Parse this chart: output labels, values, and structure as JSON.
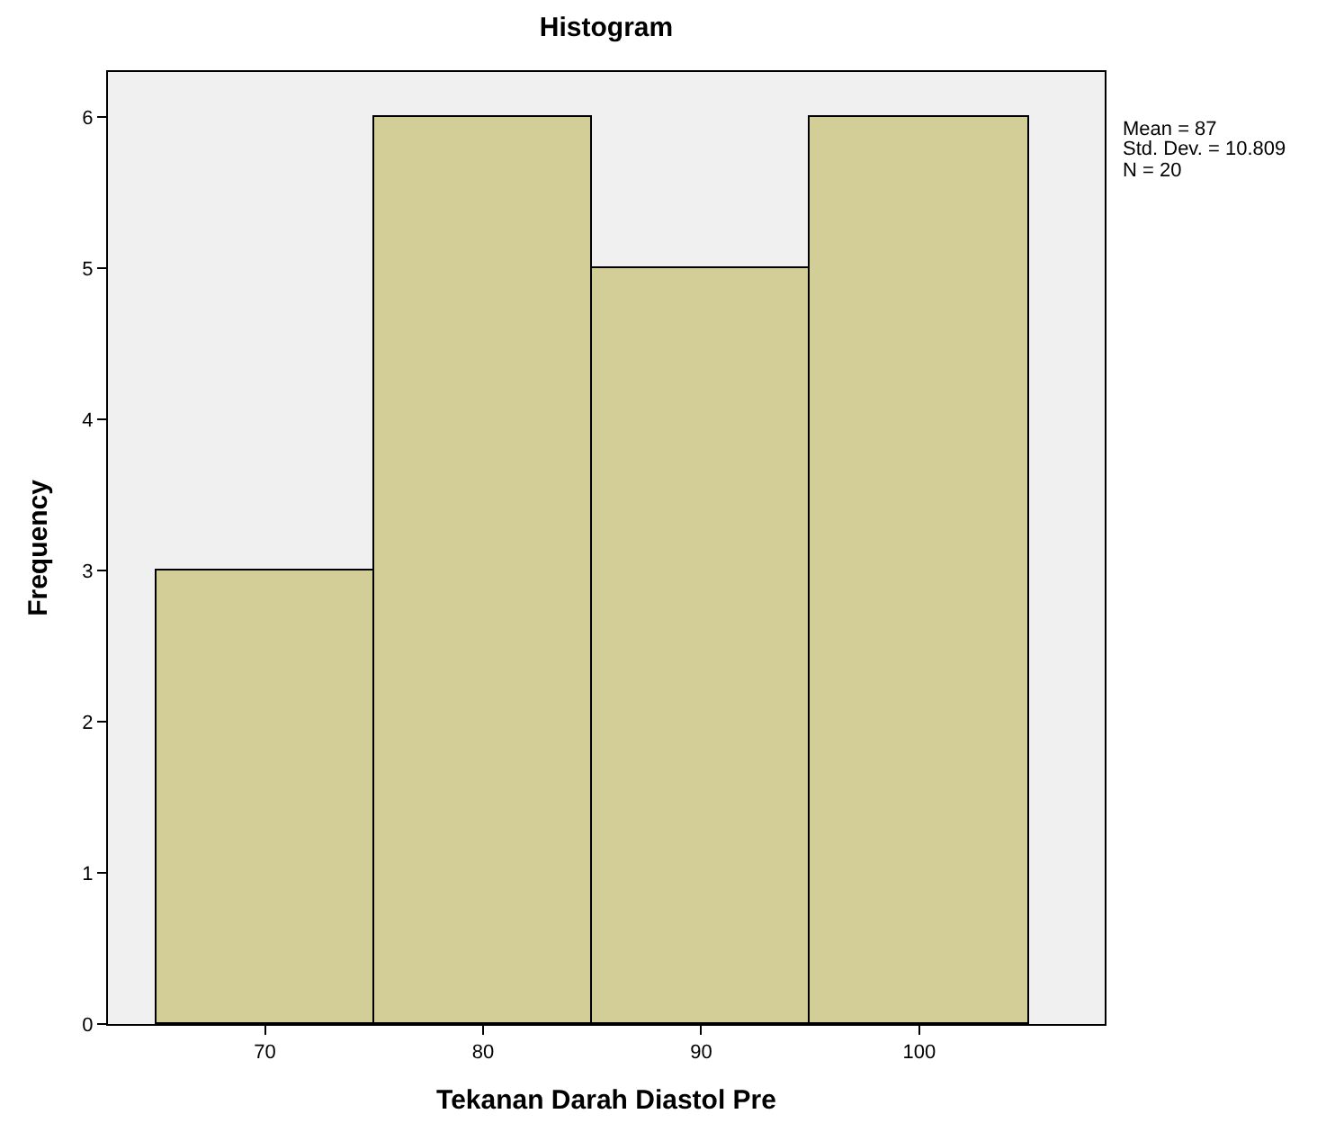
{
  "chart_data": {
    "type": "histogram",
    "title": "Histogram",
    "xlabel": "Tekanan Darah Diastol Pre",
    "ylabel": "Frequency",
    "bins": [
      65,
      75,
      85,
      95,
      105
    ],
    "values": [
      3,
      6,
      5,
      6
    ],
    "color": "#d3ce98",
    "xlim": [
      62.8,
      108.5
    ],
    "xticks": [
      70,
      80,
      90,
      100
    ],
    "ylim": [
      0,
      6.3
    ],
    "yticks": [
      0,
      1,
      2,
      3,
      4,
      5,
      6
    ],
    "annotations": [
      "Mean = 87",
      "Std. Dev. = 10.809",
      "N = 20"
    ]
  }
}
